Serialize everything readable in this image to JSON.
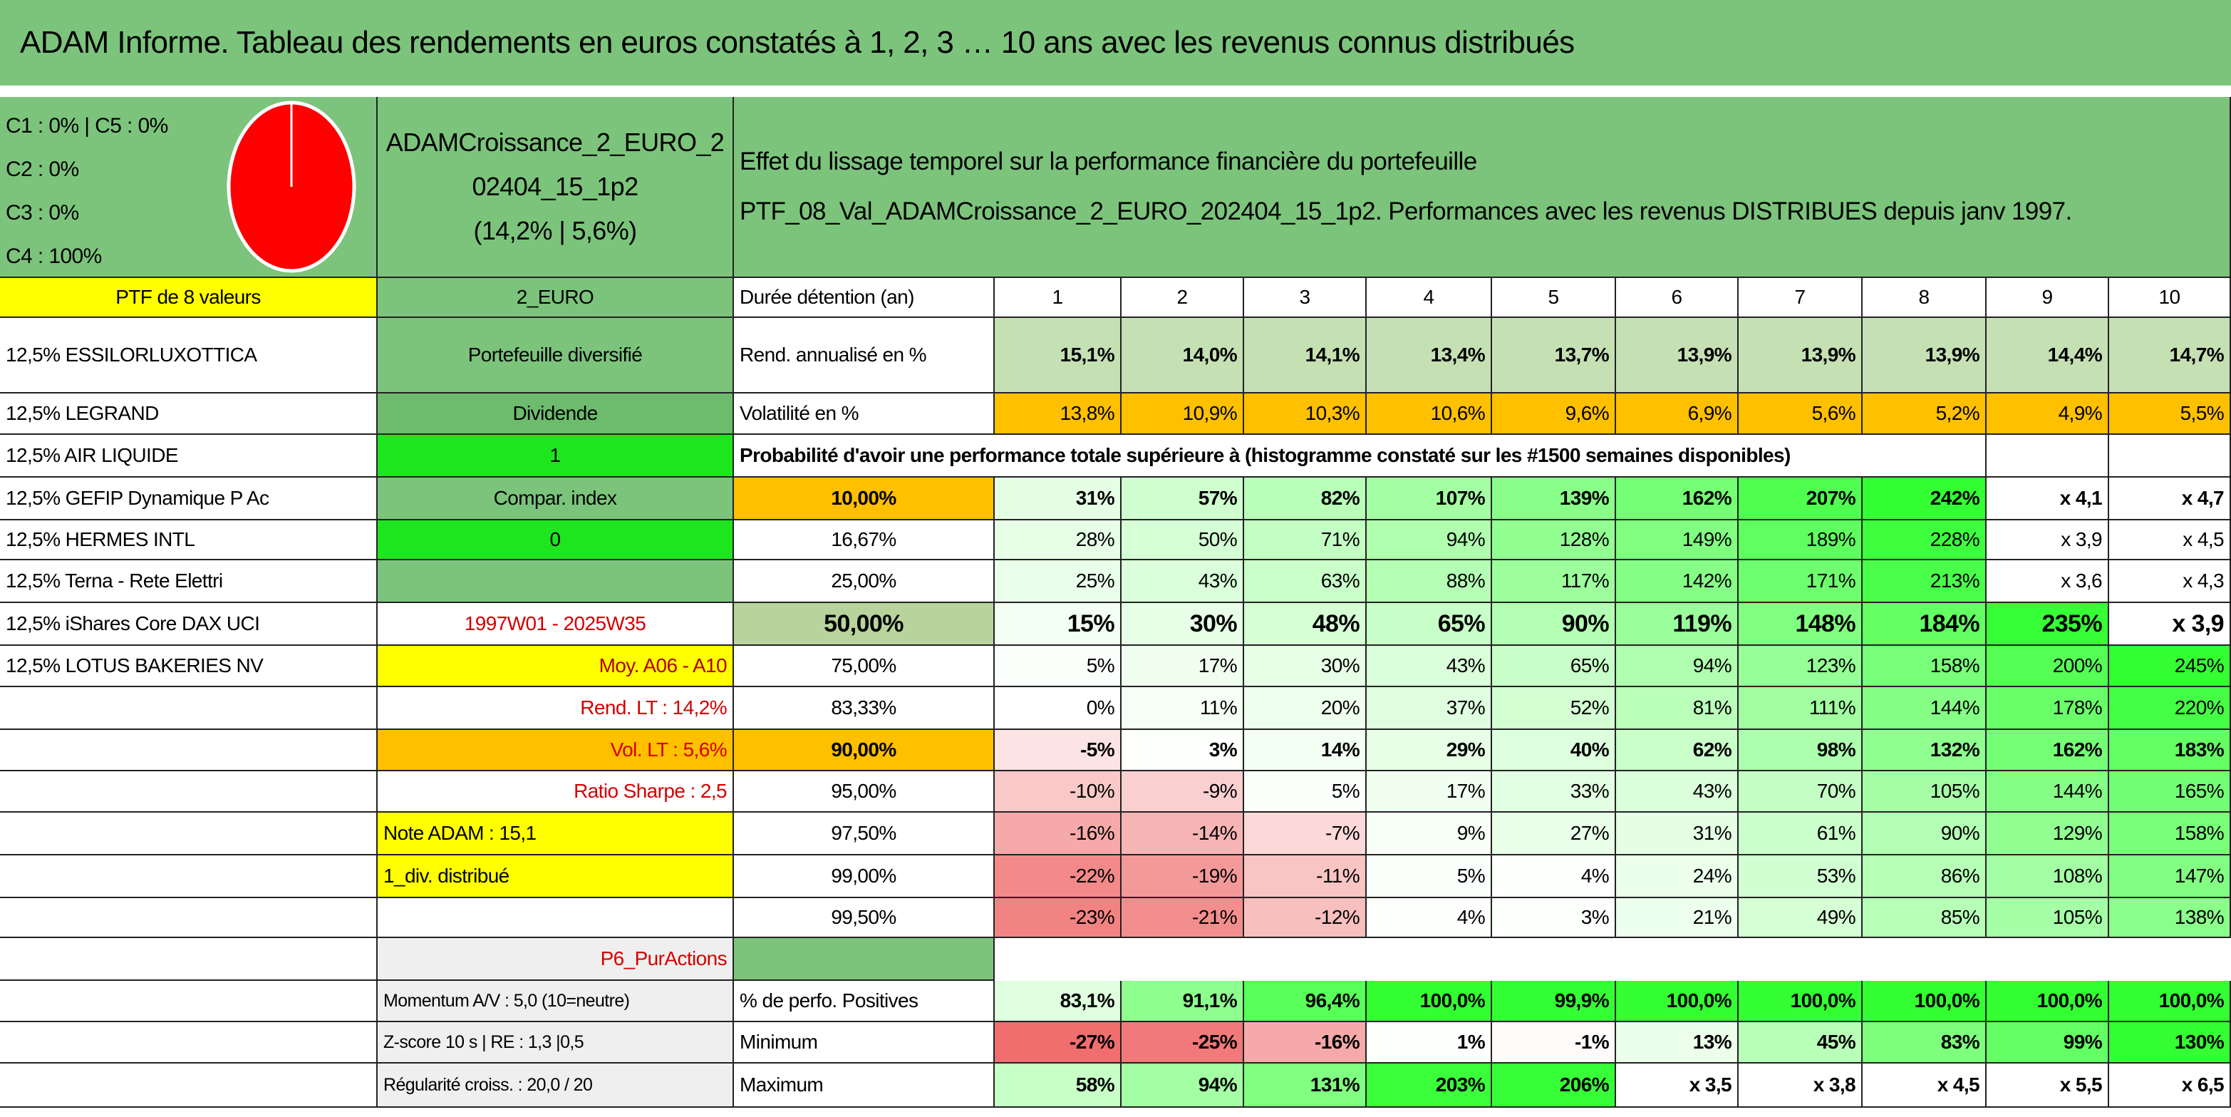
{
  "header": {
    "title": "ADAM Informe. Tableau des rendements en euros constatés à 1, 2, 3 … 10 ans avec les revenus connus distribués"
  },
  "allocation": [
    "C1 : 0% | C5 : 0%",
    "C2 : 0%",
    "C3 : 0%",
    "C4 : 100%"
  ],
  "fund": {
    "name_lines": [
      "ADAMCroissance_2_EURO_2",
      "02404_15_1p2"
    ],
    "stats": "(14,2% | 5,6%)"
  },
  "description": [
    "Effet du lissage temporel sur la performance financière du portefeuille",
    "PTF_08_Val_ADAMCroissance_2_EURO_202404_15_1p2. Performances avec les revenus DISTRIBUES depuis janv 1997."
  ],
  "portfolio": {
    "title": "PTF de 8 valeurs",
    "holdings": [
      "12,5% ESSILORLUXOTTICA",
      "12,5% LEGRAND",
      "12,5% AIR LIQUIDE",
      "12,5% GEFIP Dynamique P Ac",
      "12,5% HERMES INTL",
      "12,5% Terna - Rete Elettri",
      "12,5% iShares Core DAX UCI",
      "12,5% LOTUS BAKERIES NV"
    ]
  },
  "sidebar": {
    "currency": "2_EURO",
    "profile": "Portefeuille diversifié",
    "type": "Dividende",
    "flag_1": "1",
    "compare": "Compar. index",
    "flag_2": "0",
    "period": "1997W01 - 2025W35",
    "average": "Moy. A06 - A10",
    "rend_lt": "Rend. LT : 14,2%",
    "vol_lt": "Vol. LT : 5,6%",
    "sharpe": "Ratio Sharpe : 2,5",
    "note": "Note ADAM : 15,1",
    "dividends": "1_div. distribué",
    "category": "P6_PurActions",
    "momentum": "Momentum A/V : 5,0 (10=neutre)",
    "zscore": "Z-score 10 s | RE : 1,3 |0,5",
    "regularity": "Régularité croiss. : 20,0 / 20"
  },
  "table": {
    "header": "Durée détention (an)",
    "columns": [
      1,
      2,
      3,
      4,
      5,
      6,
      7,
      8,
      9,
      10
    ],
    "stats_rows": [
      {
        "label": "Rend. annualisé en %",
        "values": [
          "15,1%",
          "14,0%",
          "14,1%",
          "13,4%",
          "13,7%",
          "13,9%",
          "13,9%",
          "13,9%",
          "14,4%",
          "14,7%"
        ]
      },
      {
        "label": "Volatilité en %",
        "values": [
          "13,8%",
          "10,9%",
          "10,3%",
          "10,6%",
          "9,6%",
          "6,9%",
          "5,6%",
          "5,2%",
          "4,9%",
          "5,5%"
        ]
      }
    ],
    "probability_title": "Probabilité d'avoir une performance totale supérieure à (histogramme constaté sur les #1500 semaines disponibles)",
    "probability_rows": [
      {
        "label": "10,00%",
        "values": [
          "31%",
          "57%",
          "82%",
          "107%",
          "139%",
          "162%",
          "207%",
          "242%",
          "x 4,1",
          "x 4,7"
        ]
      },
      {
        "label": "16,67%",
        "values": [
          "28%",
          "50%",
          "71%",
          "94%",
          "128%",
          "149%",
          "189%",
          "228%",
          "x 3,9",
          "x 4,5"
        ]
      },
      {
        "label": "25,00%",
        "values": [
          "25%",
          "43%",
          "63%",
          "88%",
          "117%",
          "142%",
          "171%",
          "213%",
          "x 3,6",
          "x 4,3"
        ]
      },
      {
        "label": "50,00%",
        "values": [
          "15%",
          "30%",
          "48%",
          "65%",
          "90%",
          "119%",
          "148%",
          "184%",
          "235%",
          "x 3,9"
        ]
      },
      {
        "label": "75,00%",
        "values": [
          "5%",
          "17%",
          "30%",
          "43%",
          "65%",
          "94%",
          "123%",
          "158%",
          "200%",
          "245%"
        ]
      },
      {
        "label": "83,33%",
        "values": [
          "0%",
          "11%",
          "20%",
          "37%",
          "52%",
          "81%",
          "111%",
          "144%",
          "178%",
          "220%"
        ]
      },
      {
        "label": "90,00%",
        "values": [
          "-5%",
          "3%",
          "14%",
          "29%",
          "40%",
          "62%",
          "98%",
          "132%",
          "162%",
          "183%"
        ]
      },
      {
        "label": "95,00%",
        "values": [
          "-10%",
          "-9%",
          "5%",
          "17%",
          "33%",
          "43%",
          "70%",
          "105%",
          "144%",
          "165%"
        ]
      },
      {
        "label": "97,50%",
        "values": [
          "-16%",
          "-14%",
          "-7%",
          "9%",
          "27%",
          "31%",
          "61%",
          "90%",
          "129%",
          "158%"
        ]
      },
      {
        "label": "99,00%",
        "values": [
          "-22%",
          "-19%",
          "-11%",
          "5%",
          "4%",
          "24%",
          "53%",
          "86%",
          "108%",
          "147%"
        ]
      },
      {
        "label": "99,50%",
        "values": [
          "-23%",
          "-21%",
          "-12%",
          "4%",
          "3%",
          "21%",
          "49%",
          "85%",
          "105%",
          "138%"
        ]
      }
    ],
    "summary_rows": [
      {
        "label": "% de perfo. Positives",
        "values": [
          "83,1%",
          "91,1%",
          "96,4%",
          "100,0%",
          "99,9%",
          "100,0%",
          "100,0%",
          "100,0%",
          "100,0%",
          "100,0%"
        ]
      },
      {
        "label": "Minimum",
        "values": [
          "-27%",
          "-25%",
          "-16%",
          "1%",
          "-1%",
          "13%",
          "45%",
          "83%",
          "99%",
          "130%"
        ]
      },
      {
        "label": "Maximum",
        "values": [
          "58%",
          "94%",
          "131%",
          "203%",
          "206%",
          "x 3,5",
          "x 3,8",
          "x 4,5",
          "x 5,5",
          "x 6,5"
        ]
      }
    ]
  }
}
